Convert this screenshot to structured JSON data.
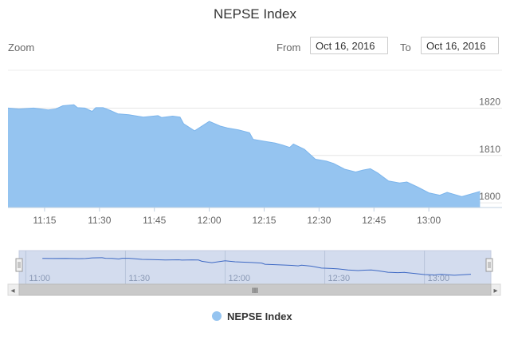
{
  "title": "NEPSE Index",
  "range_selector": {
    "zoom_label": "Zoom",
    "from_label": "From",
    "from_value": "Oct 16, 2016",
    "to_label": "To",
    "to_value": "Oct 16, 2016"
  },
  "colors": {
    "series_fill": "#95c4f0",
    "series_line": "#7cb5ec",
    "navigator_line": "#3e69c4",
    "navigator_mask": "#d3dcee",
    "grid": "#e6e6e6"
  },
  "chart_data": {
    "type": "area",
    "title": "NEPSE Index",
    "x_ticks": [
      "11:15",
      "11:30",
      "11:45",
      "12:00",
      "12:15",
      "12:30",
      "12:45",
      "13:00"
    ],
    "y_ticks": [
      1800,
      1810,
      1820
    ],
    "ylim": [
      1799,
      1828
    ],
    "xlim": [
      "11:05",
      "13:20"
    ],
    "grid": true,
    "legend": {
      "position": "bottom",
      "entries": [
        "NEPSE Index"
      ]
    },
    "series": [
      {
        "name": "NEPSE Index",
        "x": [
          "11:05",
          "11:08",
          "11:12",
          "11:16",
          "11:18",
          "11:20",
          "11:23",
          "11:24",
          "11:26",
          "11:28",
          "11:29",
          "11:31",
          "11:33",
          "11:35",
          "11:38",
          "11:42",
          "11:46",
          "11:47",
          "11:50",
          "11:52",
          "11:53",
          "11:56",
          "12:00",
          "12:03",
          "12:05",
          "12:08",
          "12:11",
          "12:12",
          "12:15",
          "12:18",
          "12:20",
          "12:22",
          "12:23",
          "12:26",
          "12:29",
          "12:32",
          "12:34",
          "12:37",
          "12:40",
          "12:42",
          "12:44",
          "12:46",
          "12:49",
          "12:52",
          "12:54",
          "12:57",
          "13:00",
          "13:03",
          "13:05",
          "13:09",
          "13:14"
        ],
        "values": [
          1820,
          1819.8,
          1820,
          1819.6,
          1819.8,
          1820.5,
          1820.7,
          1820.1,
          1820,
          1819.3,
          1820.1,
          1820.1,
          1819.5,
          1818.8,
          1818.6,
          1818.1,
          1818.4,
          1818,
          1818.3,
          1818.1,
          1816.7,
          1815.2,
          1817.2,
          1816.2,
          1815.8,
          1815.4,
          1814.8,
          1813.4,
          1813,
          1812.6,
          1812.2,
          1811.7,
          1812.4,
          1811.3,
          1809.2,
          1808.8,
          1808.3,
          1807.1,
          1806.5,
          1806.9,
          1807.2,
          1806.3,
          1804.6,
          1804.2,
          1804.4,
          1803.3,
          1802.1,
          1801.6,
          1802.2,
          1801.3,
          1802.4
        ]
      }
    ],
    "navigator": {
      "x_ticks": [
        "11:00",
        "11:30",
        "12:00",
        "12:30",
        "13:00"
      ],
      "scroll_glyph": "III",
      "left_arrow": "◂",
      "right_arrow": "▸"
    }
  }
}
